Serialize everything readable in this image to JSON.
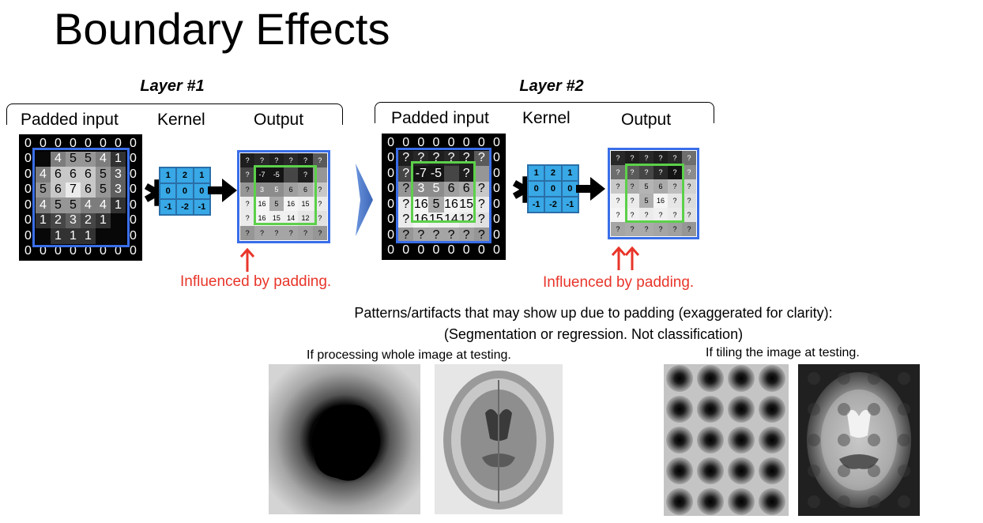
{
  "title": "Boundary Effects",
  "layer1": {
    "title": "Layer #1",
    "padded_label": "Padded input",
    "kernel_label": "Kernel",
    "output_label": "Output",
    "padded_values": [
      [
        "0",
        "0",
        "0",
        "0",
        "0",
        "0",
        "0",
        "0"
      ],
      [
        "0",
        "",
        "4",
        "5",
        "5",
        "4",
        "1",
        "0"
      ],
      [
        "0",
        "4",
        "6",
        "6",
        "6",
        "5",
        "3",
        "0"
      ],
      [
        "0",
        "5",
        "6",
        "7",
        "6",
        "5",
        "3",
        "0"
      ],
      [
        "0",
        "4",
        "5",
        "5",
        "4",
        "4",
        "1",
        "0"
      ],
      [
        "0",
        "1",
        "2",
        "3",
        "2",
        "1",
        "",
        "0"
      ],
      [
        "0",
        "",
        "1",
        "1",
        "1",
        "",
        "",
        "0"
      ],
      [
        "0",
        "0",
        "0",
        "0",
        "0",
        "0",
        "0",
        "0"
      ]
    ],
    "padded_shades": [
      [
        0,
        0,
        0,
        0,
        0,
        0,
        0,
        0
      ],
      [
        0,
        8,
        125,
        150,
        150,
        125,
        50,
        0
      ],
      [
        0,
        125,
        200,
        200,
        200,
        150,
        95,
        0
      ],
      [
        0,
        150,
        200,
        235,
        200,
        150,
        95,
        0
      ],
      [
        0,
        125,
        150,
        150,
        125,
        125,
        50,
        0
      ],
      [
        0,
        50,
        70,
        95,
        70,
        50,
        8,
        0
      ],
      [
        0,
        8,
        50,
        50,
        50,
        8,
        8,
        0
      ],
      [
        0,
        0,
        0,
        0,
        0,
        0,
        0,
        0
      ]
    ],
    "output_values": [
      [
        "?",
        "?",
        "?",
        "?",
        "?",
        "?"
      ],
      [
        "?",
        "-7",
        "-5",
        "",
        "?",
        ""
      ],
      [
        "?",
        "3",
        "5",
        "6",
        "6",
        "?"
      ],
      [
        "?",
        "16",
        "5",
        "16",
        "15",
        "?"
      ],
      [
        "?",
        "16",
        "15",
        "14",
        "12",
        "?"
      ],
      [
        "?",
        "?",
        "?",
        "?",
        "?",
        "?"
      ]
    ],
    "output_shades": [
      [
        30,
        40,
        30,
        40,
        30,
        90
      ],
      [
        70,
        20,
        20,
        70,
        30,
        150
      ],
      [
        150,
        140,
        140,
        160,
        170,
        200
      ],
      [
        235,
        245,
        170,
        245,
        240,
        235
      ],
      [
        235,
        245,
        240,
        240,
        230,
        225
      ],
      [
        150,
        165,
        165,
        165,
        160,
        150
      ]
    ],
    "note": "Influenced by padding."
  },
  "kernel_values": [
    [
      "1",
      "2",
      "1"
    ],
    [
      "0",
      "0",
      "0"
    ],
    [
      "-1",
      "-2",
      "-1"
    ]
  ],
  "layer2": {
    "title": "Layer #2",
    "padded_label": "Padded input",
    "kernel_label": "Kernel",
    "output_label": "Output",
    "padded_values": [
      [
        "0",
        "0",
        "0",
        "0",
        "0",
        "0",
        "0",
        "0"
      ],
      [
        "0",
        "?",
        "?",
        "?",
        "?",
        "?",
        "?",
        "0"
      ],
      [
        "0",
        "?",
        "-7",
        "-5",
        "",
        "?",
        "",
        "0"
      ],
      [
        "0",
        "?",
        "3",
        "5",
        "6",
        "6",
        "?",
        "0"
      ],
      [
        "0",
        "?",
        "16",
        "5",
        "16",
        "15",
        "?",
        "0"
      ],
      [
        "0",
        "?",
        "16",
        "15",
        "14",
        "12",
        "?",
        "0"
      ],
      [
        "0",
        "?",
        "?",
        "?",
        "?",
        "?",
        "?",
        "0"
      ],
      [
        "0",
        "0",
        "0",
        "0",
        "0",
        "0",
        "0",
        "0"
      ]
    ],
    "output_values": [
      [
        "?",
        "?",
        "?",
        "?",
        "?",
        "?"
      ],
      [
        "?",
        "?",
        "?",
        "?",
        "?",
        "?"
      ],
      [
        "?",
        "?",
        "5",
        "6",
        "?",
        "?"
      ],
      [
        "?",
        "?",
        "5",
        "16",
        "?",
        "?"
      ],
      [
        "?",
        "?",
        "?",
        "?",
        "?",
        "?"
      ],
      [
        "?",
        "?",
        "?",
        "?",
        "?",
        "?"
      ]
    ],
    "output_shades": [
      [
        40,
        30,
        40,
        30,
        40,
        110
      ],
      [
        110,
        90,
        70,
        40,
        20,
        140
      ],
      [
        200,
        170,
        180,
        170,
        190,
        210
      ],
      [
        240,
        235,
        175,
        245,
        230,
        220
      ],
      [
        245,
        240,
        235,
        240,
        235,
        225
      ],
      [
        165,
        170,
        170,
        165,
        160,
        150
      ]
    ],
    "note": "Influenced by padding."
  },
  "artifacts": {
    "heading": "Patterns/artifacts that may show up due to padding (exaggerated for clarity):",
    "subheading": "(Segmentation or regression. Not classification)",
    "whole_caption": "If processing whole image at testing.",
    "tiling_caption": "If tiling the image at testing."
  },
  "colors": {
    "output_border": "#3a6ee8",
    "valid_region_border": "#5cd04a",
    "kernel_fill": "#38a8e6",
    "note_red": "#e8352a",
    "big_arrow": "#4a78c8"
  }
}
